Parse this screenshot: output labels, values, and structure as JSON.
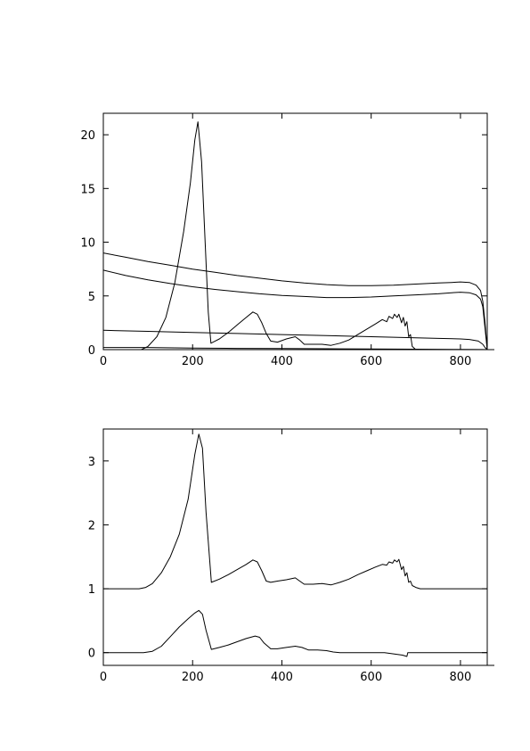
{
  "chart_data": [
    {
      "type": "line",
      "title": "",
      "xlabel": "",
      "ylabel": "",
      "xlim": [
        0,
        860
      ],
      "ylim": [
        0,
        22
      ],
      "xticks": [
        "0",
        "200",
        "400",
        "600",
        "800"
      ],
      "xtick_values": [
        0,
        200,
        400,
        600,
        800
      ],
      "yticks": [
        "0",
        "5",
        "10",
        "15",
        "20"
      ],
      "ytick_values": [
        0,
        5,
        10,
        15,
        20
      ],
      "grid": false,
      "series": [
        {
          "x": [
            0,
            50,
            100,
            150,
            200,
            250,
            300,
            350,
            400,
            450,
            500,
            550,
            600,
            650,
            700,
            750,
            780,
            800,
            820,
            835,
            845,
            850,
            855,
            860
          ],
          "y": [
            9.0,
            8.6,
            8.2,
            7.85,
            7.5,
            7.2,
            6.9,
            6.65,
            6.4,
            6.2,
            6.05,
            5.95,
            5.95,
            6.0,
            6.1,
            6.2,
            6.25,
            6.3,
            6.25,
            6.0,
            5.5,
            4.5,
            2.5,
            0
          ]
        },
        {
          "x": [
            0,
            50,
            100,
            150,
            200,
            250,
            300,
            350,
            400,
            450,
            500,
            550,
            600,
            650,
            700,
            750,
            780,
            800,
            820,
            835,
            845,
            850,
            855,
            860
          ],
          "y": [
            7.4,
            6.9,
            6.5,
            6.15,
            5.85,
            5.6,
            5.4,
            5.2,
            5.05,
            4.95,
            4.85,
            4.85,
            4.9,
            5.0,
            5.1,
            5.2,
            5.3,
            5.35,
            5.3,
            5.1,
            4.7,
            4.0,
            2.0,
            0
          ]
        },
        {
          "x": [
            0,
            100,
            200,
            300,
            400,
            500,
            600,
            700,
            750,
            800,
            820,
            840,
            850,
            855,
            860
          ],
          "y": [
            1.8,
            1.7,
            1.6,
            1.5,
            1.4,
            1.3,
            1.2,
            1.1,
            1.05,
            1.0,
            0.95,
            0.8,
            0.5,
            0.2,
            0
          ]
        },
        {
          "x": [
            0,
            100,
            200,
            300,
            400,
            500,
            600,
            700,
            800,
            850,
            860
          ],
          "y": [
            0.2,
            0.2,
            0.15,
            0.12,
            0.1,
            0.08,
            0.06,
            0.04,
            0.02,
            0.01,
            0
          ]
        },
        {
          "x": [
            85,
            100,
            120,
            140,
            160,
            180,
            195,
            205,
            212,
            220,
            228,
            235,
            241,
            260,
            280,
            300,
            320,
            335,
            345,
            355,
            365,
            375,
            390,
            410,
            430,
            440,
            450,
            470,
            490,
            510,
            530,
            550,
            570,
            590,
            610,
            625,
            635,
            640,
            648,
            652,
            658,
            662,
            668,
            672,
            676,
            680,
            684,
            688,
            692,
            700
          ],
          "y": [
            0,
            0.3,
            1.2,
            3.0,
            6.2,
            11.0,
            15.5,
            19.5,
            21.2,
            17.5,
            10.0,
            3.5,
            0.6,
            1.0,
            1.6,
            2.3,
            3.0,
            3.5,
            3.3,
            2.5,
            1.5,
            0.8,
            0.7,
            1.0,
            1.2,
            0.9,
            0.5,
            0.5,
            0.5,
            0.4,
            0.6,
            0.9,
            1.4,
            1.9,
            2.4,
            2.8,
            2.6,
            3.1,
            2.9,
            3.3,
            3.0,
            3.3,
            2.5,
            3.0,
            2.2,
            2.6,
            1.2,
            1.4,
            0.3,
            0
          ]
        }
      ]
    },
    {
      "type": "line",
      "title": "",
      "xlabel": "",
      "ylabel": "",
      "xlim": [
        0,
        860
      ],
      "ylim": [
        -0.2,
        3.5
      ],
      "xticks": [
        "0",
        "200",
        "400",
        "600",
        "800"
      ],
      "xtick_values": [
        0,
        200,
        400,
        600,
        800
      ],
      "yticks": [
        "0",
        "1",
        "2",
        "3"
      ],
      "ytick_values": [
        0,
        1,
        2,
        3
      ],
      "grid": false,
      "series": [
        {
          "x": [
            0,
            80,
            95,
            110,
            130,
            150,
            170,
            190,
            205,
            214,
            222,
            230,
            242,
            260,
            280,
            300,
            320,
            335,
            345,
            355,
            365,
            375,
            390,
            410,
            430,
            440,
            450,
            470,
            490,
            510,
            530,
            550,
            570,
            590,
            610,
            625,
            635,
            640,
            648,
            652,
            658,
            662,
            668,
            672,
            676,
            680,
            684,
            688,
            692,
            700,
            710,
            860
          ],
          "y": [
            1.0,
            1.0,
            1.02,
            1.08,
            1.25,
            1.5,
            1.85,
            2.4,
            3.1,
            3.42,
            3.2,
            2.2,
            1.1,
            1.15,
            1.22,
            1.3,
            1.38,
            1.45,
            1.42,
            1.28,
            1.12,
            1.1,
            1.12,
            1.14,
            1.17,
            1.12,
            1.07,
            1.07,
            1.08,
            1.06,
            1.1,
            1.15,
            1.22,
            1.28,
            1.34,
            1.38,
            1.37,
            1.42,
            1.4,
            1.45,
            1.42,
            1.46,
            1.3,
            1.35,
            1.2,
            1.25,
            1.1,
            1.12,
            1.05,
            1.02,
            1.0,
            1.0
          ]
        },
        {
          "x": [
            0,
            90,
            110,
            130,
            150,
            170,
            190,
            205,
            214,
            222,
            230,
            242,
            260,
            280,
            300,
            320,
            340,
            350,
            360,
            375,
            390,
            410,
            430,
            445,
            460,
            480,
            500,
            515,
            530,
            560,
            600,
            630,
            650,
            670,
            680,
            682,
            860
          ],
          "y": [
            0,
            0,
            0.02,
            0.1,
            0.25,
            0.4,
            0.53,
            0.62,
            0.66,
            0.6,
            0.35,
            0.05,
            0.08,
            0.12,
            0.17,
            0.22,
            0.26,
            0.24,
            0.15,
            0.06,
            0.06,
            0.08,
            0.1,
            0.08,
            0.04,
            0.04,
            0.03,
            0.01,
            0,
            0,
            0,
            0,
            -0.02,
            -0.04,
            -0.06,
            0,
            0
          ]
        }
      ]
    }
  ]
}
